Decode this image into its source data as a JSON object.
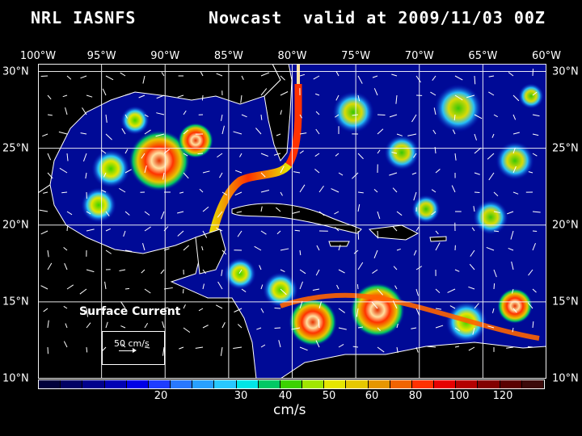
{
  "title": {
    "left": "NRL IASNFS",
    "middle": "Nowcast",
    "right": "valid at 2009/11/03 00Z"
  },
  "longitude_labels": [
    "100°W",
    "95°W",
    "90°W",
    "85°W",
    "80°W",
    "75°W",
    "70°W",
    "65°W",
    "60°W"
  ],
  "latitude_labels": [
    "30°N",
    "25°N",
    "20°N",
    "15°N",
    "10°N"
  ],
  "map": {
    "field": "Surface Current",
    "lon_range": [
      -100,
      -60
    ],
    "lat_range": [
      10,
      30.5
    ],
    "grid": true,
    "land_color": "#000000",
    "coast_color": "#ffffff",
    "low_speed_color": "#000066"
  },
  "legend": {
    "label": "Surface Current",
    "reference_vector": "50 cm/s"
  },
  "colorbar": {
    "colors": [
      "#00003c",
      "#000064",
      "#00008c",
      "#0000b4",
      "#0000e6",
      "#1e3cff",
      "#2878ff",
      "#28a0ff",
      "#28c8ff",
      "#00e6e6",
      "#00c864",
      "#3cd200",
      "#a0e600",
      "#e6e600",
      "#e6c800",
      "#e69600",
      "#f06400",
      "#ff3200",
      "#e60000",
      "#b40000",
      "#820000",
      "#5a0000",
      "#3c0a0a"
    ],
    "ticks": [
      "20",
      "30",
      "40",
      "50",
      "60",
      "80",
      "100",
      "120"
    ],
    "units": "cm/s"
  }
}
